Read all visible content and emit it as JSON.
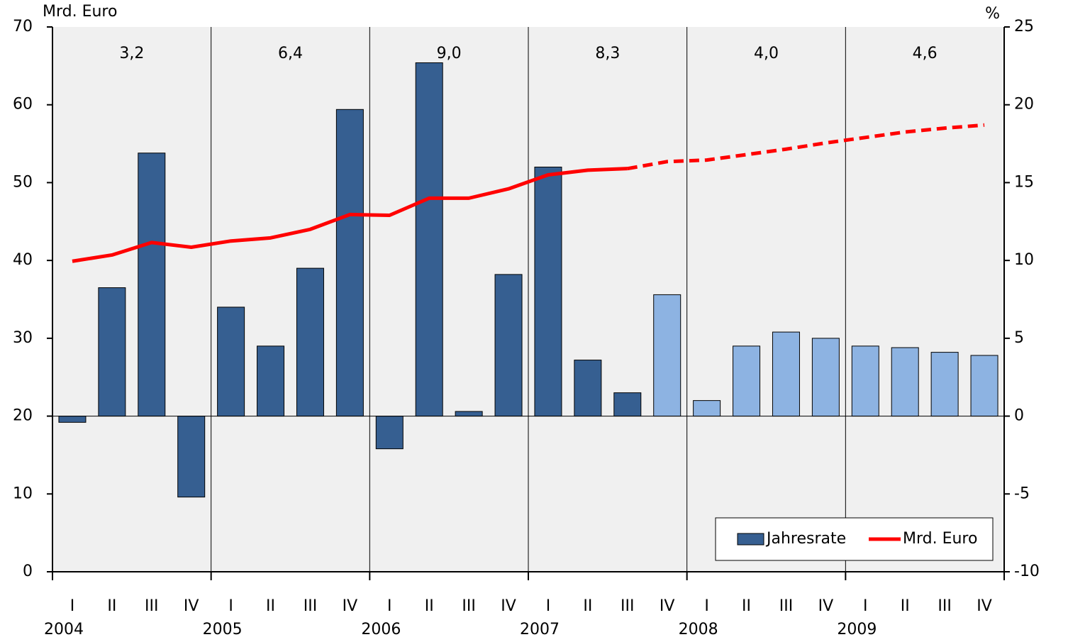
{
  "chart_data": {
    "type": "bar_line",
    "y_label": "Mrd. Euro",
    "y2_label": "%",
    "categories": [
      "I",
      "II",
      "III",
      "IV",
      "I",
      "II",
      "III",
      "IV",
      "I",
      "II",
      "III",
      "IV",
      "I",
      "II",
      "III",
      "IV",
      "I",
      "II",
      "III",
      "IV",
      "I",
      "II",
      "III",
      "IV"
    ],
    "years": [
      "2004",
      "2005",
      "2006",
      "2007",
      "2008",
      "2009"
    ],
    "annotations": [
      "3,2",
      "6,4",
      "9,0",
      "8,3",
      "4,0",
      "4,6"
    ],
    "ylim": [
      0,
      70
    ],
    "yticks": [
      0,
      10,
      20,
      30,
      40,
      50,
      60,
      70
    ],
    "y2lim": [
      -10,
      25
    ],
    "y2ticks": [
      -10,
      -5,
      0,
      5,
      10,
      15,
      20,
      25
    ],
    "legend": "lower right",
    "series": [
      {
        "name": "Jahresrate",
        "type": "bar",
        "axis": "y2",
        "color": "#365f91",
        "colors": [
          "#365f91",
          "#365f91",
          "#365f91",
          "#365f91",
          "#365f91",
          "#365f91",
          "#365f91",
          "#365f91",
          "#365f91",
          "#365f91",
          "#365f91",
          "#365f91",
          "#365f91",
          "#365f91",
          "#365f91",
          "#8db3e2",
          "#8db3e2",
          "#8db3e2",
          "#8db3e2",
          "#8db3e2",
          "#8db3e2",
          "#8db3e2",
          "#8db3e2",
          "#8db3e2"
        ],
        "values": [
          -0.4,
          8.25,
          16.9,
          -5.2,
          7.0,
          4.5,
          9.5,
          19.7,
          -2.1,
          22.7,
          0.3,
          9.1,
          16.0,
          3.6,
          1.5,
          7.8,
          1.0,
          4.5,
          5.4,
          5.0,
          4.5,
          4.4,
          4.1,
          3.9
        ]
      },
      {
        "name": "Mrd. Euro",
        "type": "line",
        "axis": "y",
        "color": "#ff0000",
        "dash_start": 14,
        "values": [
          39.9,
          40.7,
          42.3,
          41.7,
          42.5,
          42.9,
          44.0,
          45.9,
          45.8,
          48.0,
          48.0,
          49.2,
          51.0,
          51.6,
          51.8,
          52.7,
          52.9,
          53.6,
          54.3,
          55.1,
          55.8,
          56.5,
          57.0,
          57.4
        ]
      }
    ]
  }
}
